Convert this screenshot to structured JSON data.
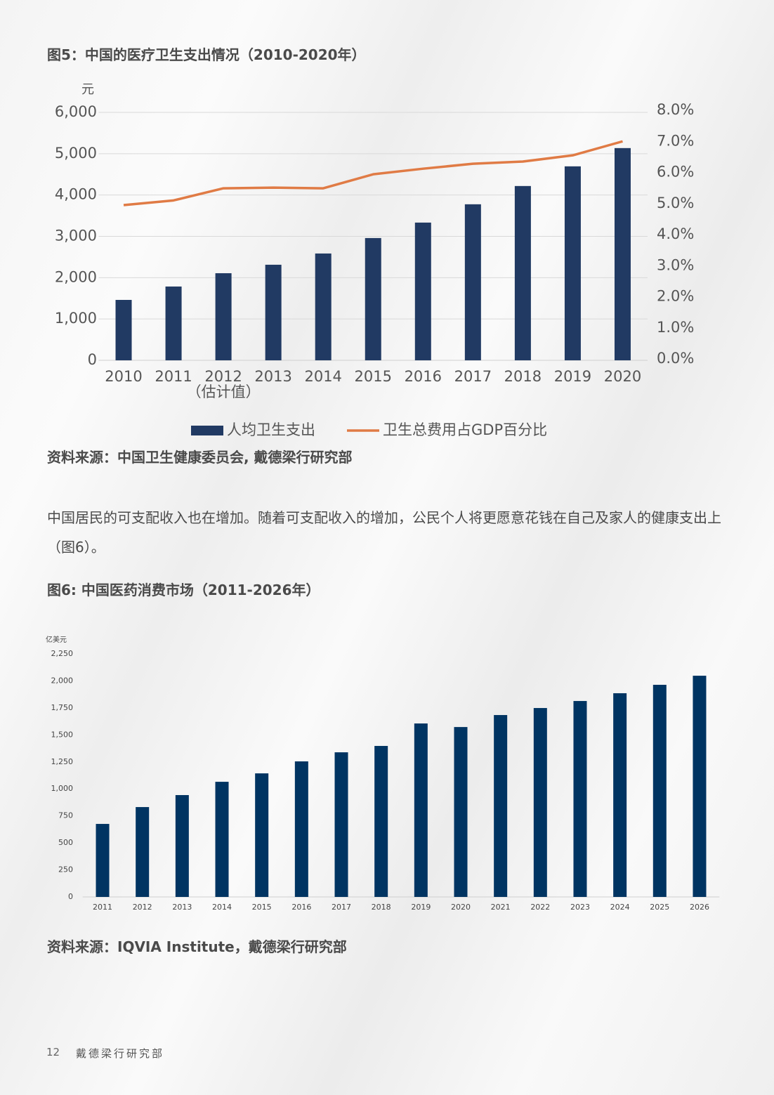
{
  "chart_data": [
    {
      "type": "bar_line",
      "title": "图5：中国的医疗卫生支出情况（2010-2020年）",
      "y_label": "元",
      "categories": [
        "2010",
        "2011",
        "2012",
        "2013",
        "2014",
        "2015",
        "2016",
        "2017",
        "2018",
        "2019",
        "2020"
      ],
      "x_note": "（估计值）",
      "series": [
        {
          "name": "人均卫生支出",
          "type": "bar",
          "color": "#213a63",
          "values": [
            1462,
            1786,
            2108,
            2313,
            2585,
            2959,
            3333,
            3776,
            4218,
            4694,
            5136
          ]
        },
        {
          "name": "卫生总费用占GDP百分比",
          "type": "line",
          "axis": "y2",
          "color": "#e07b45",
          "values": [
            4.95,
            5.1,
            5.49,
            5.51,
            5.49,
            5.94,
            6.12,
            6.28,
            6.35,
            6.55,
            7.0
          ]
        }
      ],
      "ylim": [
        0,
        6000
      ],
      "yticks": [
        0,
        {
          "value": 1000,
          "label": "1,000"
        },
        {
          "value": 2000,
          "label": "2,000"
        },
        {
          "value": 3000,
          "label": "3,000"
        },
        {
          "value": 4000,
          "label": "4,000"
        },
        {
          "value": 5000,
          "label": "5,000"
        },
        {
          "value": 6000,
          "label": "6,000"
        }
      ],
      "y2lim": [
        0,
        8
      ],
      "y2ticks": [
        {
          "value": 0,
          "label": "0.0%"
        },
        {
          "value": 1,
          "label": "1.0%"
        },
        {
          "value": 2,
          "label": "2.0%"
        },
        {
          "value": 3,
          "label": "3.0%"
        },
        {
          "value": 4,
          "label": "4.0%"
        },
        {
          "value": 5,
          "label": "5.0%"
        },
        {
          "value": 6,
          "label": "6.0%"
        },
        {
          "value": 7,
          "label": "7.0%"
        },
        {
          "value": 8,
          "label": "8.0%"
        }
      ],
      "grid": true,
      "legend": "bottom",
      "source": "资料来源：中国卫生健康委员会, 戴德梁行研究部"
    },
    {
      "type": "bar",
      "title": "图6: 中国医药消费市场（2011-2026年）",
      "y_label": "亿美元",
      "categories": [
        "2011",
        "2012",
        "2013",
        "2014",
        "2015",
        "2016",
        "2017",
        "2018",
        "2019",
        "2020",
        "2021",
        "2022",
        "2023",
        "2024",
        "2025",
        "2026"
      ],
      "values": [
        676,
        832,
        943,
        1066,
        1144,
        1255,
        1339,
        1398,
        1606,
        1573,
        1684,
        1749,
        1814,
        1886,
        1964,
        2048
      ],
      "color": "#003462",
      "ylim": [
        0,
        2250
      ],
      "yticks": [
        0,
        250,
        500,
        750,
        {
          "value": 1000,
          "label": "1,000"
        },
        {
          "value": 1250,
          "label": "1,250"
        },
        {
          "value": 1500,
          "label": "1,500"
        },
        {
          "value": 1750,
          "label": "1,750"
        },
        {
          "value": 2000,
          "label": "2,000"
        },
        {
          "value": 2250,
          "label": "2,250"
        }
      ],
      "grid": false,
      "source": "资料来源：IQVIA Institute，戴德梁行研究部"
    }
  ],
  "paragraph": "中国居民的可支配收入也在增加。随着可支配收入的增加，公民个人将更愿意花钱在自己及家人的健康支出上（图6）。",
  "footer": {
    "page_number": "12",
    "org": "戴德梁行研究部"
  }
}
